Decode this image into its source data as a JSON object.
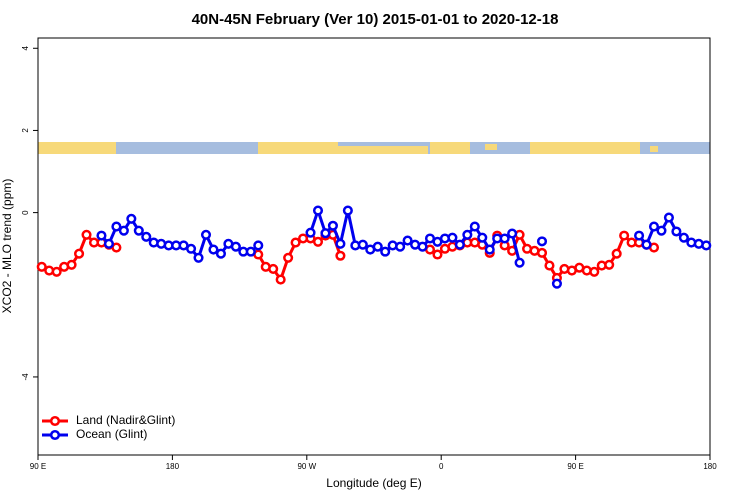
{
  "chart_data": {
    "type": "line",
    "title": "40N-45N February (Ver 10)   2015-01-01 to 2020-12-18",
    "x_label": "Longitude (deg E)",
    "y_label": "XCO2 - MLO trend (ppm)",
    "xlim": [
      90,
      540
    ],
    "xticks": [
      {
        "value": 90,
        "label": "90 E"
      },
      180,
      {
        "value": 270,
        "label": "90 W"
      },
      {
        "value": 360,
        "label": "0"
      },
      {
        "value": 450,
        "label": "90 E"
      },
      {
        "value": 540,
        "label": "180"
      }
    ],
    "ylim": [
      -5.9,
      4.25
    ],
    "yticks": [
      -4,
      0,
      2,
      4
    ],
    "legend": "lower left",
    "series": [
      {
        "name": "Land (Nadir&Glint)",
        "color": "#ff0000",
        "x": [
          92.5,
          97.5,
          102.5,
          107.5,
          112.5,
          117.5,
          122.5,
          127.5,
          132.5,
          137.5,
          142.5,
          null,
          237.5,
          242.5,
          247.5,
          252.5,
          257.5,
          262.5,
          267.5,
          272.5,
          277.5,
          282.5,
          287.5,
          292.5,
          null,
          352.5,
          357.5,
          362.5,
          367.5,
          372.5,
          377.5,
          382.5,
          387.5,
          392.5,
          397.5,
          402.5,
          407.5,
          412.5,
          417.5,
          422.5,
          427.5,
          432.5,
          437.5,
          442.5,
          447.5,
          452.5,
          457.5,
          462.5,
          467.5,
          472.5,
          477.5,
          482.5,
          487.5,
          492.5,
          497.5,
          502.5
        ],
        "values": [
          -1.32,
          -1.41,
          -1.44,
          -1.32,
          -1.27,
          -1.0,
          -0.54,
          -0.73,
          -0.73,
          -0.78,
          -0.85,
          null,
          -1.02,
          -1.32,
          -1.37,
          -1.63,
          -1.1,
          -0.73,
          -0.63,
          -0.63,
          -0.71,
          -0.56,
          -0.54,
          -1.05,
          null,
          -0.9,
          -1.02,
          -0.88,
          -0.83,
          -0.8,
          -0.73,
          -0.73,
          -0.78,
          -0.98,
          -0.56,
          -0.8,
          -0.93,
          -0.54,
          -0.88,
          -0.93,
          -0.98,
          -1.29,
          -1.59,
          -1.37,
          -1.41,
          -1.34,
          -1.41,
          -1.44,
          -1.29,
          -1.27,
          -1.0,
          -0.56,
          -0.73,
          -0.73,
          -0.78,
          -0.85
        ]
      },
      {
        "name": "Ocean (Glint)",
        "color": "#0000ee",
        "x": [
          132.5,
          137.5,
          142.5,
          147.5,
          152.5,
          157.5,
          162.5,
          167.5,
          172.5,
          177.5,
          182.5,
          187.5,
          192.5,
          197.5,
          202.5,
          207.5,
          212.5,
          217.5,
          222.5,
          227.5,
          232.5,
          237.5,
          null,
          272.5,
          277.5,
          282.5,
          287.5,
          292.5,
          297.5,
          302.5,
          307.5,
          312.5,
          317.5,
          322.5,
          327.5,
          332.5,
          337.5,
          342.5,
          347.5,
          352.5,
          357.5,
          362.5,
          367.5,
          372.5,
          377.5,
          382.5,
          387.5,
          392.5,
          397.5,
          402.5,
          407.5,
          412.5,
          null,
          427.5,
          null,
          437.5,
          null,
          492.5,
          497.5,
          502.5,
          507.5,
          512.5,
          517.5,
          522.5,
          527.5,
          532.5,
          537.5
        ],
        "values": [
          -0.56,
          -0.76,
          -0.34,
          -0.44,
          -0.15,
          -0.44,
          -0.59,
          -0.73,
          -0.76,
          -0.8,
          -0.8,
          -0.8,
          -0.88,
          -1.1,
          -0.54,
          -0.9,
          -1.0,
          -0.76,
          -0.83,
          -0.95,
          -0.95,
          -0.8,
          null,
          -0.49,
          0.05,
          -0.5,
          -0.32,
          -0.76,
          0.05,
          -0.8,
          -0.78,
          -0.9,
          -0.83,
          -0.95,
          -0.8,
          -0.83,
          -0.68,
          -0.78,
          -0.83,
          -0.63,
          -0.71,
          -0.63,
          -0.61,
          -0.78,
          -0.54,
          -0.34,
          -0.61,
          -0.9,
          -0.63,
          -0.63,
          -0.51,
          -1.22,
          null,
          -0.7,
          null,
          -1.73,
          null,
          -0.56,
          -0.78,
          -0.34,
          -0.44,
          -0.12,
          -0.46,
          -0.61,
          -0.73,
          -0.76,
          -0.8
        ]
      }
    ]
  }
}
